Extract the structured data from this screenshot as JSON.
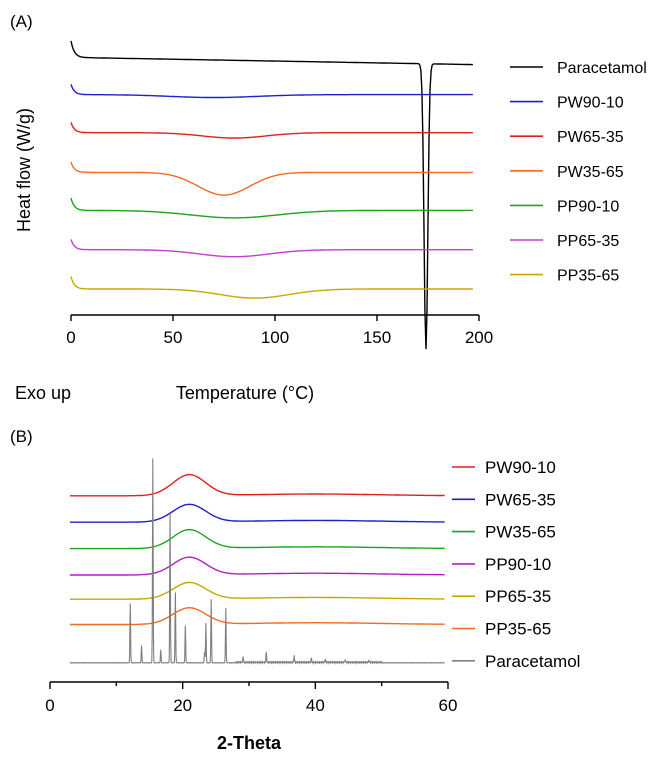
{
  "chart_data": [
    {
      "panel": "(A)",
      "type": "line",
      "title": "",
      "xlabel": "Temperature (°C)",
      "ylabel": "Heat flow (W/g)",
      "note": "Exo up",
      "xlim": [
        0,
        200
      ],
      "xticks": [
        0,
        50,
        100,
        150,
        200
      ],
      "grid": false,
      "legend": "right",
      "series": [
        {
          "name": "Paracetamol",
          "color": "#000000",
          "baseline": 5.6,
          "features": [
            {
              "type": "onset",
              "height": 0.4
            },
            {
              "type": "drift",
              "amount": -0.15
            },
            {
              "type": "peak",
              "center": 174,
              "width": 1.3,
              "depth": 6.9
            }
          ]
        },
        {
          "name": "PW90-10",
          "color": "#1f1fd1",
          "baseline": 4.7,
          "features": [
            {
              "type": "onset",
              "height": 0.25
            },
            {
              "type": "dip",
              "center": 70,
              "width": 30,
              "depth": 0.07
            }
          ]
        },
        {
          "name": "PW65-35",
          "color": "#e0201c",
          "baseline": 3.78,
          "features": [
            {
              "type": "onset",
              "height": 0.25
            },
            {
              "type": "dip",
              "center": 80,
              "width": 22,
              "depth": 0.13
            }
          ]
        },
        {
          "name": "PW35-65",
          "color": "#f26a22",
          "baseline": 2.82,
          "features": [
            {
              "type": "onset",
              "height": 0.25
            },
            {
              "type": "dip",
              "center": 75,
              "width": 18,
              "depth": 0.55
            }
          ]
        },
        {
          "name": "PP90-10",
          "color": "#1aa51a",
          "baseline": 1.9,
          "features": [
            {
              "type": "onset",
              "height": 0.3
            },
            {
              "type": "dip",
              "center": 80,
              "width": 30,
              "depth": 0.18
            }
          ]
        },
        {
          "name": "PP65-35",
          "color": "#c43fd0",
          "baseline": 0.95,
          "features": [
            {
              "type": "onset",
              "height": 0.25
            },
            {
              "type": "dip",
              "center": 80,
              "width": 24,
              "depth": 0.17
            }
          ]
        },
        {
          "name": "PP35-65",
          "color": "#c6a800",
          "baseline": 0.0,
          "features": [
            {
              "type": "onset",
              "height": 0.3
            },
            {
              "type": "dip",
              "center": 90,
              "width": 24,
              "depth": 0.22
            }
          ]
        }
      ]
    },
    {
      "panel": "(B)",
      "type": "line",
      "title": "",
      "xlabel": "2-Theta",
      "ylabel": "",
      "xlim": [
        0,
        60
      ],
      "xticks": [
        0,
        20,
        40,
        60
      ],
      "grid": false,
      "legend": "right",
      "x_start": 3,
      "series": [
        {
          "name": "PW90-10",
          "color": "#e0201c",
          "baseline": 7.6,
          "halo": {
            "center": 21,
            "width": 3.5,
            "height": 0.95
          }
        },
        {
          "name": "PW65-35",
          "color": "#1f1fd1",
          "baseline": 6.4,
          "halo": {
            "center": 21,
            "width": 3.5,
            "height": 0.8
          }
        },
        {
          "name": "PW35-65",
          "color": "#1aa51a",
          "baseline": 5.2,
          "halo": {
            "center": 21,
            "width": 3.5,
            "height": 0.85
          }
        },
        {
          "name": "PP90-10",
          "color": "#b21fc4",
          "baseline": 4.0,
          "halo": {
            "center": 21,
            "width": 3.5,
            "height": 0.8
          }
        },
        {
          "name": "PP65-35",
          "color": "#c6a800",
          "baseline": 2.9,
          "halo": {
            "center": 21,
            "width": 3.5,
            "height": 0.75
          }
        },
        {
          "name": "PP35-65",
          "color": "#f26a22",
          "baseline": 1.75,
          "halo": {
            "center": 21,
            "width": 3.5,
            "height": 0.75
          }
        },
        {
          "name": "Paracetamol",
          "color": "#808080",
          "baseline": 0.0,
          "peaks": [
            [
              12.1,
              2.7
            ],
            [
              13.8,
              0.8
            ],
            [
              15.5,
              9.3
            ],
            [
              16.7,
              0.6
            ],
            [
              18.1,
              6.8
            ],
            [
              18.9,
              3.2
            ],
            [
              20.4,
              1.7
            ],
            [
              23.3,
              0.5
            ],
            [
              23.5,
              1.8
            ],
            [
              24.3,
              2.9
            ],
            [
              26.5,
              2.5
            ],
            [
              29.1,
              0.25
            ],
            [
              32.6,
              0.5
            ],
            [
              36.8,
              0.3
            ],
            [
              39.4,
              0.2
            ],
            [
              41.5,
              0.15
            ],
            [
              44.5,
              0.12
            ],
            [
              48.1,
              0.1
            ]
          ]
        }
      ]
    }
  ]
}
